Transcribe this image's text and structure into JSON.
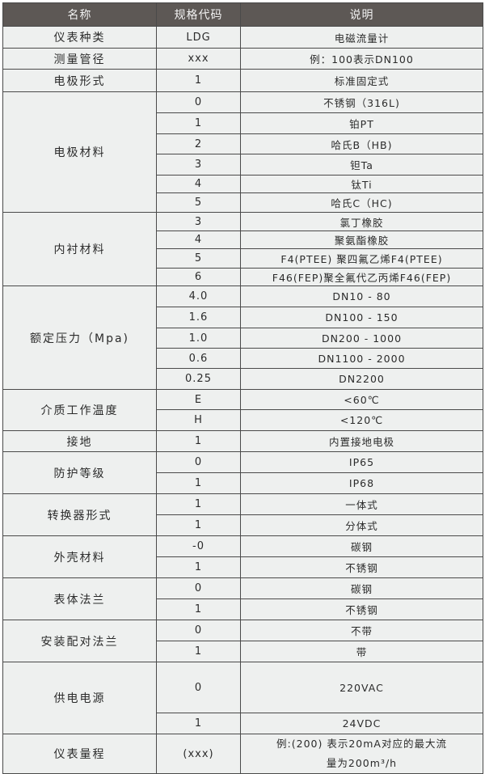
{
  "header": {
    "name": "名称",
    "code": "规格代码",
    "desc": "说明"
  },
  "groups": [
    {
      "name": "仪表种类",
      "rows": [
        {
          "code": "LDG",
          "desc": "电磁流量计"
        }
      ]
    },
    {
      "name": "测量管径",
      "rows": [
        {
          "code": "xxx",
          "desc": "例：100表示DN100"
        }
      ]
    },
    {
      "name": "电极形式",
      "rows": [
        {
          "code": "1",
          "desc": "标准固定式"
        }
      ]
    },
    {
      "name": "电极材料",
      "rows": [
        {
          "code": "0",
          "desc": "不锈钢（316L)"
        },
        {
          "code": "1",
          "desc": "铂PT"
        },
        {
          "code": "2",
          "desc": "哈氏B（HB)"
        },
        {
          "code": "3",
          "desc": "钽Ta"
        },
        {
          "code": "4",
          "desc": "钛Ti"
        },
        {
          "code": "5",
          "desc": "哈氏C（HC)"
        }
      ]
    },
    {
      "name": "内衬材料",
      "rows": [
        {
          "code": "3",
          "desc": "氯丁橡胶"
        },
        {
          "code": "4",
          "desc": "聚氨酯橡胶"
        },
        {
          "code": "5",
          "desc": "F4(PTEE) 聚四氟乙烯F4(PTEE)"
        },
        {
          "code": "6",
          "desc": "F46(FEP)聚全氟代乙丙烯F46(FEP)"
        }
      ]
    },
    {
      "name": "额定压力（Mpa)",
      "rows": [
        {
          "code": "4.0",
          "desc": "DN10 - 80"
        },
        {
          "code": "1.6",
          "desc": "DN100 - 150"
        },
        {
          "code": "1.0",
          "desc": "DN200 - 1000"
        },
        {
          "code": "0.6",
          "desc": "DN1100 - 2000"
        },
        {
          "code": "0.25",
          "desc": "DN2200"
        }
      ]
    },
    {
      "name": "介质工作温度",
      "rows": [
        {
          "code": "E",
          "desc": "<60℃"
        },
        {
          "code": "H",
          "desc": "<120℃"
        }
      ]
    },
    {
      "name": "接地",
      "rows": [
        {
          "code": "1",
          "desc": "内置接地电极"
        }
      ]
    },
    {
      "name": "防护等级",
      "rows": [
        {
          "code": "0",
          "desc": "IP65"
        },
        {
          "code": "1",
          "desc": "IP68"
        }
      ]
    },
    {
      "name": "转换器形式",
      "rows": [
        {
          "code": "1",
          "desc": "一体式"
        },
        {
          "code": "1",
          "desc": "分体式"
        }
      ]
    },
    {
      "name": "外壳材料",
      "rows": [
        {
          "code": "-0",
          "desc": "碳钢"
        },
        {
          "code": "1",
          "desc": "不锈钢"
        }
      ]
    },
    {
      "name": "表体法兰",
      "rows": [
        {
          "code": "0",
          "desc": "碳钢"
        },
        {
          "code": "1",
          "desc": "不锈钢"
        }
      ]
    },
    {
      "name": "安装配对法兰",
      "rows": [
        {
          "code": "0",
          "desc": "不带"
        },
        {
          "code": "1",
          "desc": "带"
        }
      ]
    },
    {
      "name": "供电电源",
      "rows": [
        {
          "code": "0",
          "desc": "220VAC"
        },
        {
          "code": "1",
          "desc": "24VDC"
        }
      ]
    },
    {
      "name": "仪表量程",
      "rows": [
        {
          "code": "(xxx)",
          "desc": "例:(200) 表示20mA对应的最大流量为200m³/h"
        }
      ]
    }
  ]
}
